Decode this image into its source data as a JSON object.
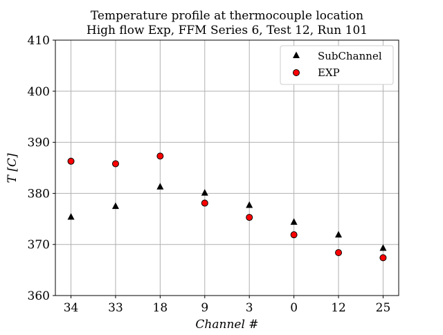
{
  "chart_data": {
    "type": "scatter",
    "title": [
      "Temperature profile at thermocouple location",
      "High flow Exp, FFM Series 6, Test 12, Run 101"
    ],
    "xlabel": "Channel #",
    "ylabel": "T [C]",
    "categories": [
      "34",
      "33",
      "18",
      "9",
      "3",
      "0",
      "12",
      "25"
    ],
    "ylim": [
      360,
      410
    ],
    "yticks": [
      360,
      370,
      380,
      390,
      400,
      410
    ],
    "grid": true,
    "legend_position": "top-right",
    "series": [
      {
        "name": "SubChannel",
        "marker": "triangle",
        "color": "#000000",
        "values": [
          375.4,
          377.5,
          381.3,
          380.1,
          377.7,
          374.4,
          371.9,
          369.3
        ]
      },
      {
        "name": "EXP",
        "marker": "circle",
        "color": "#ff0000",
        "values": [
          386.3,
          385.8,
          387.3,
          378.1,
          375.3,
          371.9,
          368.4,
          367.4
        ]
      }
    ]
  }
}
